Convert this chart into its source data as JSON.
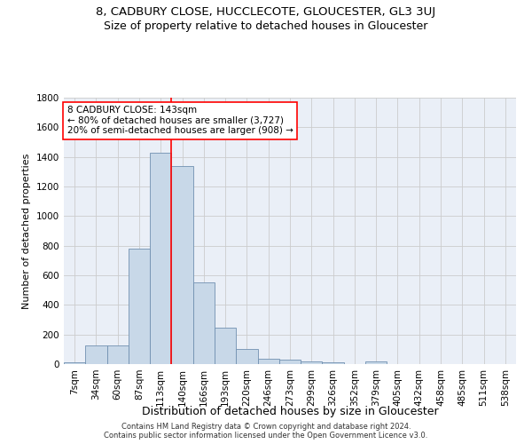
{
  "title1": "8, CADBURY CLOSE, HUCCLECOTE, GLOUCESTER, GL3 3UJ",
  "title2": "Size of property relative to detached houses in Gloucester",
  "xlabel": "Distribution of detached houses by size in Gloucester",
  "ylabel": "Number of detached properties",
  "footer1": "Contains HM Land Registry data © Crown copyright and database right 2024.",
  "footer2": "Contains public sector information licensed under the Open Government Licence v3.0.",
  "bin_labels": [
    "7sqm",
    "34sqm",
    "60sqm",
    "87sqm",
    "113sqm",
    "140sqm",
    "166sqm",
    "193sqm",
    "220sqm",
    "246sqm",
    "273sqm",
    "299sqm",
    "326sqm",
    "352sqm",
    "379sqm",
    "405sqm",
    "432sqm",
    "458sqm",
    "485sqm",
    "511sqm",
    "538sqm"
  ],
  "bar_heights": [
    10,
    125,
    125,
    780,
    1430,
    1340,
    550,
    245,
    105,
    35,
    30,
    20,
    15,
    0,
    20,
    0,
    0,
    0,
    0,
    0,
    0
  ],
  "bar_color": "#c8d8e8",
  "bar_edge_color": "#7090b0",
  "vline_x": 5.0,
  "vline_color": "red",
  "annotation_line1": "8 CADBURY CLOSE: 143sqm",
  "annotation_line2": "← 80% of detached houses are smaller (3,727)",
  "annotation_line3": "20% of semi-detached houses are larger (908) →",
  "annotation_box_color": "white",
  "annotation_box_edge_color": "red",
  "ylim": [
    0,
    1800
  ],
  "yticks": [
    0,
    200,
    400,
    600,
    800,
    1000,
    1200,
    1400,
    1600,
    1800
  ],
  "grid_color": "#cccccc",
  "background_color": "#eaeff7",
  "title1_fontsize": 9.5,
  "title2_fontsize": 9,
  "xlabel_fontsize": 9,
  "ylabel_fontsize": 8,
  "tick_fontsize": 7.5,
  "annotation_fontsize": 7.5,
  "footer_fontsize": 6
}
